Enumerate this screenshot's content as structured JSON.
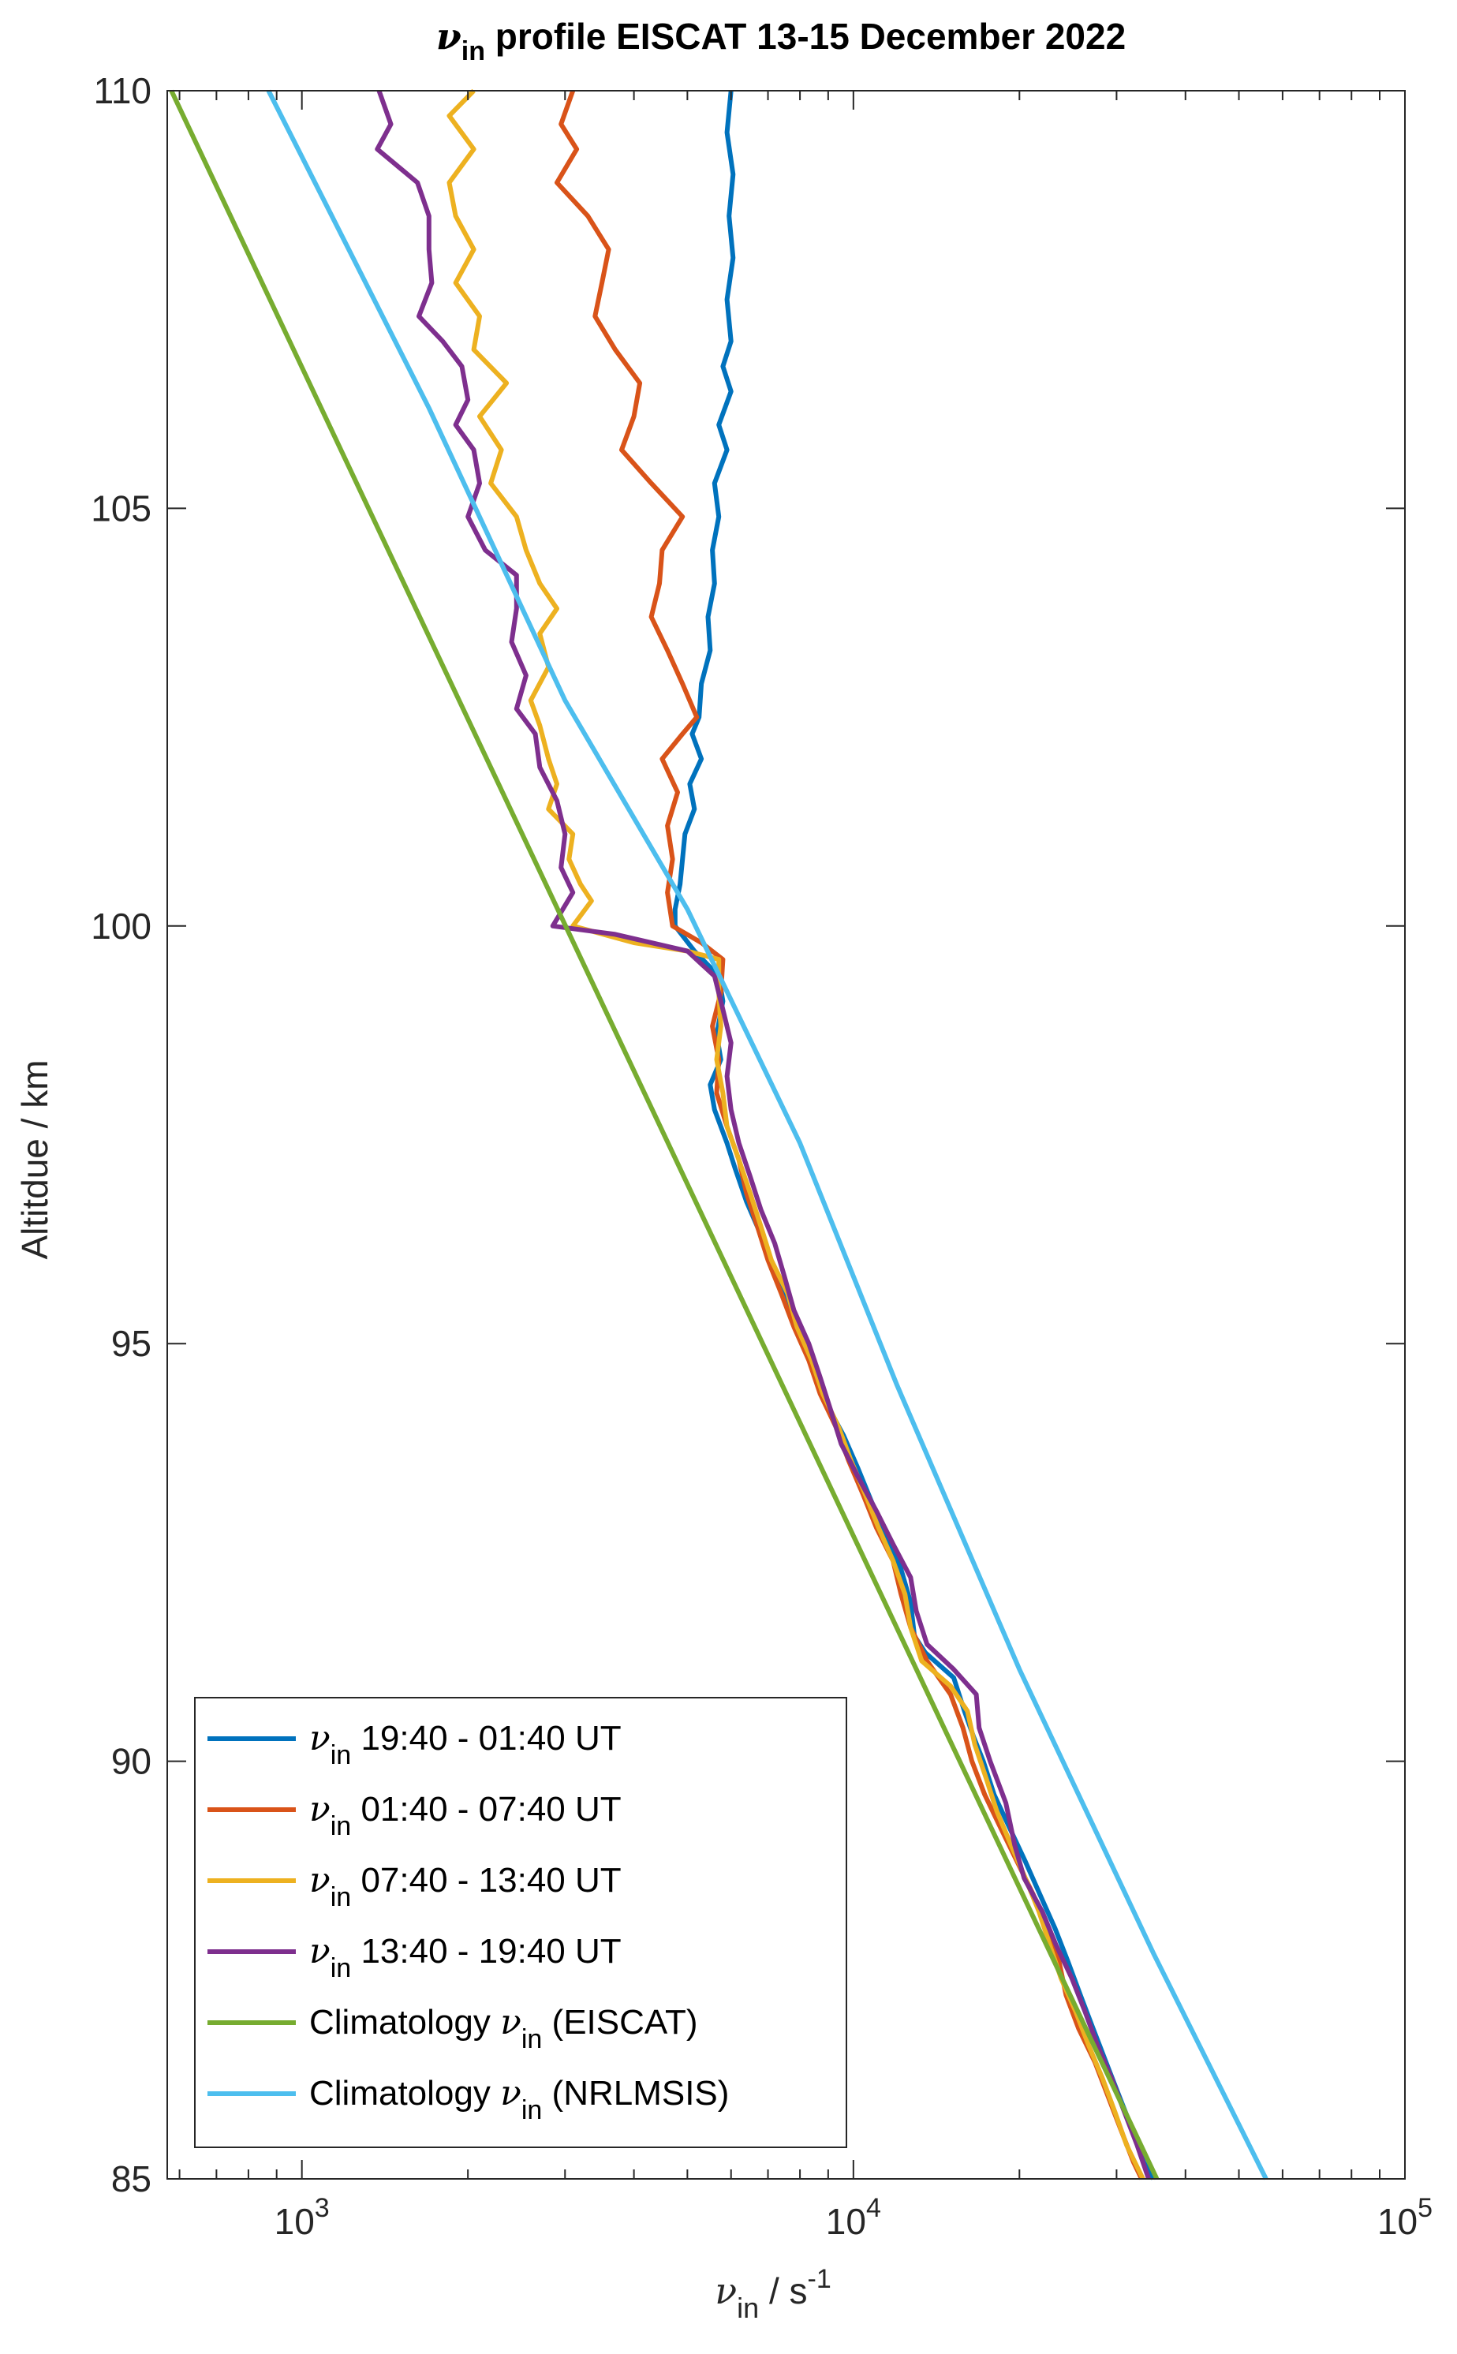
{
  "chart_data": {
    "type": "line",
    "title": {
      "symbol": "ν",
      "subscript": "in",
      "text": " profile EISCAT 13-15 December 2022"
    },
    "xlabel": {
      "symbol": "ν",
      "subscript": "in",
      "text": " / s",
      "exponent": "-1"
    },
    "ylabel": "Altitdue / km",
    "x_scale": "log",
    "xlim": [
      570,
      100000
    ],
    "ylim": [
      85,
      110
    ],
    "x_ticks": [
      {
        "value": 1000,
        "base": "10",
        "exp": "3"
      },
      {
        "value": 10000,
        "base": "10",
        "exp": "4"
      },
      {
        "value": 100000,
        "base": "10",
        "exp": "5"
      }
    ],
    "y_ticks": [
      {
        "value": 85,
        "label": "85"
      },
      {
        "value": 90,
        "label": "90"
      },
      {
        "value": 95,
        "label": "95"
      },
      {
        "value": 100,
        "label": "100"
      },
      {
        "value": 105,
        "label": "105"
      },
      {
        "value": 110,
        "label": "110"
      }
    ],
    "grid": false,
    "legend_position": "bottom-left",
    "series": [
      {
        "name": "19:40 - 01:40 UT",
        "legend_prefix": "ν",
        "legend_sub": "in",
        "legend_text": " 19:40 - 01:40 UT",
        "legend_suffix": "",
        "color": "#0072BD",
        "points": [
          [
            6000,
            110
          ],
          [
            5900,
            109.5
          ],
          [
            6050,
            109
          ],
          [
            5950,
            108.5
          ],
          [
            6050,
            108
          ],
          [
            5900,
            107.5
          ],
          [
            6000,
            107
          ],
          [
            5800,
            106.7
          ],
          [
            6000,
            106.4
          ],
          [
            5700,
            106
          ],
          [
            5900,
            105.7
          ],
          [
            5600,
            105.3
          ],
          [
            5700,
            104.9
          ],
          [
            5550,
            104.5
          ],
          [
            5600,
            104.1
          ],
          [
            5450,
            103.7
          ],
          [
            5500,
            103.3
          ],
          [
            5300,
            102.9
          ],
          [
            5250,
            102.5
          ],
          [
            5100,
            102.3
          ],
          [
            5300,
            102
          ],
          [
            5050,
            101.7
          ],
          [
            5150,
            101.4
          ],
          [
            4950,
            101.1
          ],
          [
            4900,
            100.8
          ],
          [
            4850,
            100.5
          ],
          [
            4750,
            100.2
          ],
          [
            4750,
            100
          ],
          [
            5150,
            99.7
          ],
          [
            5700,
            99.4
          ],
          [
            5800,
            99.1
          ],
          [
            5650,
            98.7
          ],
          [
            5750,
            98.4
          ],
          [
            5500,
            98.1
          ],
          [
            5600,
            97.8
          ],
          [
            5900,
            97.4
          ],
          [
            6100,
            97.1
          ],
          [
            6400,
            96.7
          ],
          [
            6800,
            96.3
          ],
          [
            7100,
            95.9
          ],
          [
            7600,
            95.5
          ],
          [
            8000,
            95.1
          ],
          [
            8500,
            94.7
          ],
          [
            8900,
            94.3
          ],
          [
            9600,
            93.9
          ],
          [
            10200,
            93.5
          ],
          [
            10800,
            93.1
          ],
          [
            11500,
            92.7
          ],
          [
            12200,
            92.3
          ],
          [
            12700,
            91.9
          ],
          [
            12900,
            91.5
          ],
          [
            13500,
            91.3
          ],
          [
            15200,
            91.0
          ],
          [
            15900,
            90.6
          ],
          [
            16500,
            90.3
          ],
          [
            17200,
            90.0
          ],
          [
            18000,
            89.6
          ],
          [
            19200,
            89.2
          ],
          [
            20500,
            88.8
          ],
          [
            21800,
            88.4
          ],
          [
            23200,
            88.0
          ],
          [
            24500,
            87.6
          ],
          [
            25800,
            87.2
          ],
          [
            27200,
            86.8
          ],
          [
            28700,
            86.4
          ],
          [
            30300,
            86.0
          ],
          [
            32000,
            85.6
          ],
          [
            33600,
            85.2
          ],
          [
            35000,
            85.0
          ]
        ]
      },
      {
        "name": "01:40 - 07:40 UT",
        "legend_prefix": "ν",
        "legend_sub": "in",
        "legend_text": " 01:40 - 07:40 UT",
        "legend_suffix": "",
        "color": "#D95319",
        "points": [
          [
            3100,
            110
          ],
          [
            2950,
            109.6
          ],
          [
            3150,
            109.3
          ],
          [
            2900,
            108.9
          ],
          [
            3300,
            108.5
          ],
          [
            3600,
            108.1
          ],
          [
            3500,
            107.7
          ],
          [
            3400,
            107.3
          ],
          [
            3700,
            106.9
          ],
          [
            4100,
            106.5
          ],
          [
            4000,
            106.1
          ],
          [
            3800,
            105.7
          ],
          [
            4300,
            105.3
          ],
          [
            4900,
            104.9
          ],
          [
            4500,
            104.5
          ],
          [
            4450,
            104.1
          ],
          [
            4300,
            103.7
          ],
          [
            4600,
            103.3
          ],
          [
            4900,
            102.9
          ],
          [
            5200,
            102.5
          ],
          [
            4900,
            102.3
          ],
          [
            4500,
            102.0
          ],
          [
            4800,
            101.6
          ],
          [
            4600,
            101.2
          ],
          [
            4700,
            100.8
          ],
          [
            4600,
            100.4
          ],
          [
            4700,
            100.0
          ],
          [
            5300,
            99.8
          ],
          [
            5800,
            99.6
          ],
          [
            5750,
            99.2
          ],
          [
            5550,
            98.8
          ],
          [
            5700,
            98.4
          ],
          [
            5650,
            98.0
          ],
          [
            5900,
            97.6
          ],
          [
            6200,
            97.2
          ],
          [
            6400,
            96.8
          ],
          [
            6700,
            96.4
          ],
          [
            7000,
            96.0
          ],
          [
            7400,
            95.6
          ],
          [
            7800,
            95.2
          ],
          [
            8300,
            94.8
          ],
          [
            8700,
            94.4
          ],
          [
            9300,
            94.0
          ],
          [
            9800,
            93.6
          ],
          [
            10400,
            93.2
          ],
          [
            11000,
            92.8
          ],
          [
            11800,
            92.4
          ],
          [
            12200,
            92.0
          ],
          [
            12700,
            91.6
          ],
          [
            13600,
            91.2
          ],
          [
            15000,
            90.8
          ],
          [
            15800,
            90.4
          ],
          [
            16400,
            90.0
          ],
          [
            17300,
            89.6
          ],
          [
            18500,
            89.2
          ],
          [
            19800,
            88.8
          ],
          [
            21200,
            88.4
          ],
          [
            22300,
            88.0
          ],
          [
            23600,
            87.6
          ],
          [
            24300,
            87.2
          ],
          [
            25600,
            86.8
          ],
          [
            27400,
            86.4
          ],
          [
            28900,
            86.0
          ],
          [
            30500,
            85.6
          ],
          [
            32200,
            85.2
          ],
          [
            33300,
            85.0
          ]
        ]
      },
      {
        "name": "07:40 - 13:40 UT",
        "legend_prefix": "ν",
        "legend_sub": "in",
        "legend_text": " 07:40 - 13:40 UT",
        "legend_suffix": "",
        "color": "#EDB120",
        "points": [
          [
            2050,
            110
          ],
          [
            1850,
            109.7
          ],
          [
            2050,
            109.3
          ],
          [
            1850,
            108.9
          ],
          [
            1900,
            108.5
          ],
          [
            2050,
            108.1
          ],
          [
            1900,
            107.7
          ],
          [
            2100,
            107.3
          ],
          [
            2050,
            106.9
          ],
          [
            2350,
            106.5
          ],
          [
            2100,
            106.1
          ],
          [
            2300,
            105.7
          ],
          [
            2200,
            105.3
          ],
          [
            2450,
            104.9
          ],
          [
            2550,
            104.5
          ],
          [
            2700,
            104.1
          ],
          [
            2900,
            103.8
          ],
          [
            2700,
            103.5
          ],
          [
            2800,
            103.1
          ],
          [
            2600,
            102.7
          ],
          [
            2700,
            102.4
          ],
          [
            2800,
            102.0
          ],
          [
            2900,
            101.7
          ],
          [
            2800,
            101.4
          ],
          [
            3100,
            101.1
          ],
          [
            3050,
            100.8
          ],
          [
            3200,
            100.5
          ],
          [
            3350,
            100.3
          ],
          [
            3100,
            100.0
          ],
          [
            4000,
            99.8
          ],
          [
            5000,
            99.7
          ],
          [
            5700,
            99.6
          ],
          [
            5700,
            99.2
          ],
          [
            5750,
            98.8
          ],
          [
            5650,
            98.4
          ],
          [
            5800,
            98.0
          ],
          [
            5900,
            97.6
          ],
          [
            6200,
            97.2
          ],
          [
            6500,
            96.8
          ],
          [
            6800,
            96.4
          ],
          [
            7100,
            96.0
          ],
          [
            7600,
            95.6
          ],
          [
            7900,
            95.2
          ],
          [
            8400,
            94.8
          ],
          [
            8800,
            94.4
          ],
          [
            9400,
            94.0
          ],
          [
            9900,
            93.6
          ],
          [
            10500,
            93.2
          ],
          [
            11100,
            92.8
          ],
          [
            11800,
            92.4
          ],
          [
            12400,
            92.0
          ],
          [
            12700,
            91.6
          ],
          [
            13300,
            91.2
          ],
          [
            15000,
            90.9
          ],
          [
            16100,
            90.6
          ],
          [
            16600,
            90.2
          ],
          [
            17400,
            89.8
          ],
          [
            18200,
            89.4
          ],
          [
            19300,
            89.0
          ],
          [
            20500,
            88.6
          ],
          [
            21700,
            88.2
          ],
          [
            22700,
            87.8
          ],
          [
            23800,
            87.4
          ],
          [
            25300,
            87.0
          ],
          [
            26700,
            86.6
          ],
          [
            28300,
            86.2
          ],
          [
            29800,
            85.8
          ],
          [
            31300,
            85.4
          ],
          [
            33500,
            85.0
          ]
        ]
      },
      {
        "name": "13:40 - 19:40 UT",
        "legend_prefix": "ν",
        "legend_sub": "in",
        "legend_text": " 13:40 - 19:40 UT",
        "legend_suffix": "",
        "color": "#7E2F8E",
        "points": [
          [
            1380,
            110
          ],
          [
            1450,
            109.6
          ],
          [
            1370,
            109.3
          ],
          [
            1620,
            108.9
          ],
          [
            1700,
            108.5
          ],
          [
            1700,
            108.1
          ],
          [
            1720,
            107.7
          ],
          [
            1630,
            107.3
          ],
          [
            1800,
            107.0
          ],
          [
            1950,
            106.7
          ],
          [
            2000,
            106.3
          ],
          [
            1900,
            106.0
          ],
          [
            2050,
            105.7
          ],
          [
            2100,
            105.3
          ],
          [
            2000,
            104.9
          ],
          [
            2150,
            104.5
          ],
          [
            2450,
            104.2
          ],
          [
            2450,
            103.8
          ],
          [
            2400,
            103.4
          ],
          [
            2550,
            103.0
          ],
          [
            2450,
            102.6
          ],
          [
            2650,
            102.3
          ],
          [
            2700,
            101.9
          ],
          [
            2900,
            101.5
          ],
          [
            3000,
            101.1
          ],
          [
            2950,
            100.7
          ],
          [
            3100,
            100.4
          ],
          [
            2850,
            100.0
          ],
          [
            3700,
            99.9
          ],
          [
            5000,
            99.7
          ],
          [
            5600,
            99.4
          ],
          [
            5800,
            99.0
          ],
          [
            6000,
            98.6
          ],
          [
            5900,
            98.2
          ],
          [
            6000,
            97.8
          ],
          [
            6200,
            97.4
          ],
          [
            6500,
            97.0
          ],
          [
            6800,
            96.6
          ],
          [
            7200,
            96.2
          ],
          [
            7500,
            95.8
          ],
          [
            7800,
            95.4
          ],
          [
            8300,
            95.0
          ],
          [
            8700,
            94.6
          ],
          [
            9100,
            94.2
          ],
          [
            9500,
            93.8
          ],
          [
            10200,
            93.4
          ],
          [
            11000,
            93.0
          ],
          [
            11800,
            92.6
          ],
          [
            12700,
            92.2
          ],
          [
            13000,
            91.8
          ],
          [
            13600,
            91.4
          ],
          [
            15200,
            91.1
          ],
          [
            16700,
            90.8
          ],
          [
            16900,
            90.4
          ],
          [
            17700,
            90.0
          ],
          [
            18900,
            89.5
          ],
          [
            19600,
            89.0
          ],
          [
            20400,
            88.6
          ],
          [
            22000,
            88.2
          ],
          [
            23300,
            87.8
          ],
          [
            24900,
            87.4
          ],
          [
            26300,
            87.0
          ],
          [
            27700,
            86.6
          ],
          [
            29400,
            86.2
          ],
          [
            31000,
            85.8
          ],
          [
            32700,
            85.4
          ],
          [
            34300,
            85.0
          ]
        ]
      },
      {
        "name": "Climatology (EISCAT)",
        "legend_prefix": "Climatology ",
        "legend_symbol": "ν",
        "legend_sub": "in",
        "legend_text": "",
        "legend_suffix": " (EISCAT)",
        "color": "#77AC30",
        "points": [
          [
            580,
            110
          ],
          [
            35500,
            85
          ]
        ]
      },
      {
        "name": "Climatology (NRLMSIS)",
        "legend_prefix": "Climatology ",
        "legend_symbol": "ν",
        "legend_sub": "in",
        "legend_text": "",
        "legend_suffix": " (NRLMSIS)",
        "color": "#4DBEEE",
        "points": [
          [
            870,
            110
          ],
          [
            1700,
            106.2
          ],
          [
            3000,
            102.7
          ],
          [
            5000,
            100.2
          ],
          [
            8000,
            97.4
          ],
          [
            12000,
            94.5
          ],
          [
            20000,
            91.1
          ],
          [
            35000,
            87.7
          ],
          [
            56000,
            85
          ]
        ]
      }
    ]
  }
}
